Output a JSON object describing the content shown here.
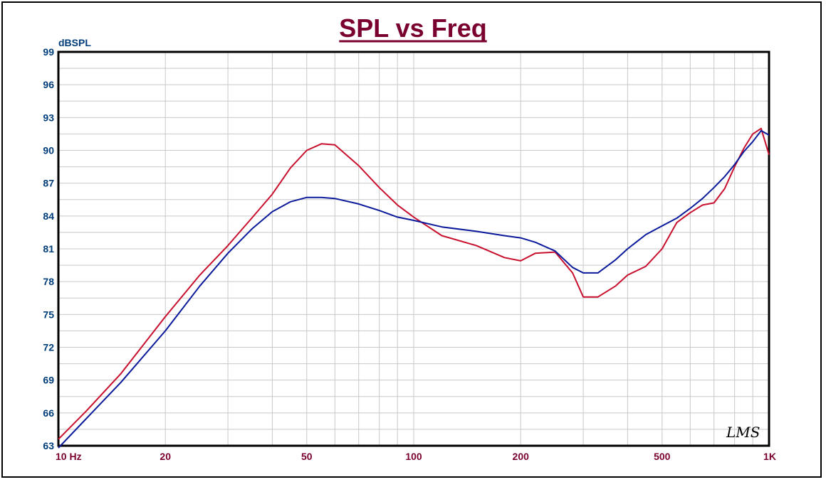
{
  "colors": {
    "title": "#7a0030",
    "tick_text": "#003d7a",
    "x_tick_text": "#7a0030",
    "grid": "#c8c8c8",
    "series_red": "#c8102e",
    "series_blue": "#0a1a9a"
  },
  "chart_data": {
    "type": "line",
    "title": "SPL vs Freq",
    "ylabel": "dBSPL",
    "xlabel": "",
    "x_scale": "log",
    "xlim": [
      10,
      1000
    ],
    "ylim": [
      63,
      99
    ],
    "grid": true,
    "y_ticks": [
      99,
      96,
      93,
      90,
      87,
      84,
      81,
      78,
      75,
      72,
      69,
      66,
      63
    ],
    "x_ticks": [
      {
        "value": 10,
        "label": "10 Hz"
      },
      {
        "value": 20,
        "label": "20"
      },
      {
        "value": 50,
        "label": "50"
      },
      {
        "value": 100,
        "label": "100"
      },
      {
        "value": 200,
        "label": "200"
      },
      {
        "value": 500,
        "label": "500"
      },
      {
        "value": 1000,
        "label": "1K"
      }
    ],
    "logo": "LMS",
    "series": [
      {
        "color": "#c8102e",
        "points": [
          [
            10,
            63.6
          ],
          [
            12,
            66.2
          ],
          [
            15,
            69.6
          ],
          [
            20,
            74.8
          ],
          [
            25,
            78.6
          ],
          [
            30,
            81.3
          ],
          [
            35,
            83.8
          ],
          [
            40,
            86.0
          ],
          [
            45,
            88.4
          ],
          [
            50,
            90.0
          ],
          [
            55,
            90.6
          ],
          [
            60,
            90.5
          ],
          [
            70,
            88.6
          ],
          [
            80,
            86.6
          ],
          [
            90,
            85.0
          ],
          [
            100,
            83.9
          ],
          [
            120,
            82.2
          ],
          [
            150,
            81.3
          ],
          [
            180,
            80.2
          ],
          [
            200,
            79.9
          ],
          [
            220,
            80.6
          ],
          [
            250,
            80.7
          ],
          [
            280,
            78.8
          ],
          [
            300,
            76.6
          ],
          [
            330,
            76.6
          ],
          [
            370,
            77.6
          ],
          [
            400,
            78.6
          ],
          [
            450,
            79.4
          ],
          [
            500,
            81.0
          ],
          [
            550,
            83.4
          ],
          [
            600,
            84.3
          ],
          [
            650,
            85.0
          ],
          [
            700,
            85.2
          ],
          [
            750,
            86.5
          ],
          [
            800,
            88.5
          ],
          [
            850,
            90.2
          ],
          [
            900,
            91.5
          ],
          [
            950,
            92.0
          ],
          [
            1000,
            89.6
          ]
        ]
      },
      {
        "color": "#0a1a9a",
        "points": [
          [
            10,
            62.8
          ],
          [
            12,
            65.5
          ],
          [
            15,
            68.8
          ],
          [
            20,
            73.5
          ],
          [
            25,
            77.6
          ],
          [
            30,
            80.6
          ],
          [
            35,
            82.8
          ],
          [
            40,
            84.4
          ],
          [
            45,
            85.3
          ],
          [
            50,
            85.7
          ],
          [
            55,
            85.7
          ],
          [
            60,
            85.6
          ],
          [
            70,
            85.1
          ],
          [
            80,
            84.5
          ],
          [
            90,
            83.9
          ],
          [
            100,
            83.6
          ],
          [
            120,
            83.0
          ],
          [
            150,
            82.6
          ],
          [
            180,
            82.2
          ],
          [
            200,
            82.0
          ],
          [
            220,
            81.6
          ],
          [
            250,
            80.8
          ],
          [
            280,
            79.3
          ],
          [
            300,
            78.8
          ],
          [
            330,
            78.8
          ],
          [
            370,
            80.0
          ],
          [
            400,
            81.0
          ],
          [
            450,
            82.3
          ],
          [
            500,
            83.1
          ],
          [
            550,
            83.8
          ],
          [
            600,
            84.7
          ],
          [
            650,
            85.6
          ],
          [
            700,
            86.6
          ],
          [
            750,
            87.6
          ],
          [
            800,
            88.7
          ],
          [
            850,
            89.9
          ],
          [
            900,
            90.8
          ],
          [
            950,
            91.8
          ],
          [
            1000,
            91.4
          ]
        ]
      }
    ]
  }
}
